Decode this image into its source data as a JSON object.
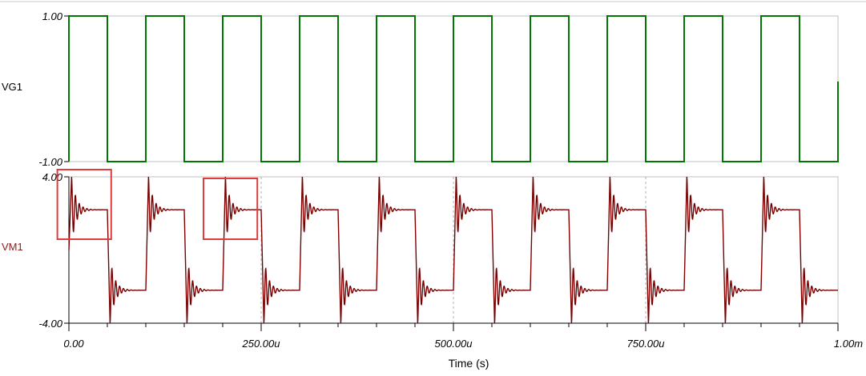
{
  "chart_data": [
    {
      "type": "line",
      "series": [
        {
          "name": "VG1",
          "color": "#007700",
          "waveform": "square",
          "period_us": 100,
          "duty": 0.5,
          "high": 1.0,
          "low": -1.0,
          "first_level": 1.0
        }
      ],
      "ylabel": "VG1",
      "ytick_labels": [
        "1.00",
        "-1.00"
      ],
      "ylim": [
        -1.0,
        1.0
      ],
      "xlim": [
        0,
        1000
      ],
      "label_color": "#000000",
      "grid": false
    },
    {
      "type": "line",
      "series": [
        {
          "name": "VM1",
          "color": "#7a0000",
          "waveform": "square-with-ringing",
          "period_us": 100,
          "duty": 0.5,
          "high_settle": 2.2,
          "low_settle": -2.2,
          "peak": 4.0,
          "start_value": 0.0,
          "ringing_period_us": 5,
          "ringing_decay_us": 6
        }
      ],
      "ylabel": "VM1",
      "ytick_labels": [
        "4.00",
        "-4.00"
      ],
      "ylim": [
        -4.0,
        4.0
      ],
      "xlim": [
        0,
        1000
      ],
      "label_color": "#8b1a1a",
      "grid_x_us": [
        250,
        500,
        750
      ],
      "highlight_boxes_us": [
        [
          -15,
          55
        ],
        [
          175,
          245
        ]
      ],
      "highlight_color": "#e03c3c"
    }
  ],
  "x_axis": {
    "tick_labels": [
      "0.00",
      "250.00u",
      "500.00u",
      "750.00u",
      "1.00m"
    ],
    "tick_values_us": [
      0,
      250,
      500,
      750,
      1000
    ],
    "title": "Time (s)"
  }
}
